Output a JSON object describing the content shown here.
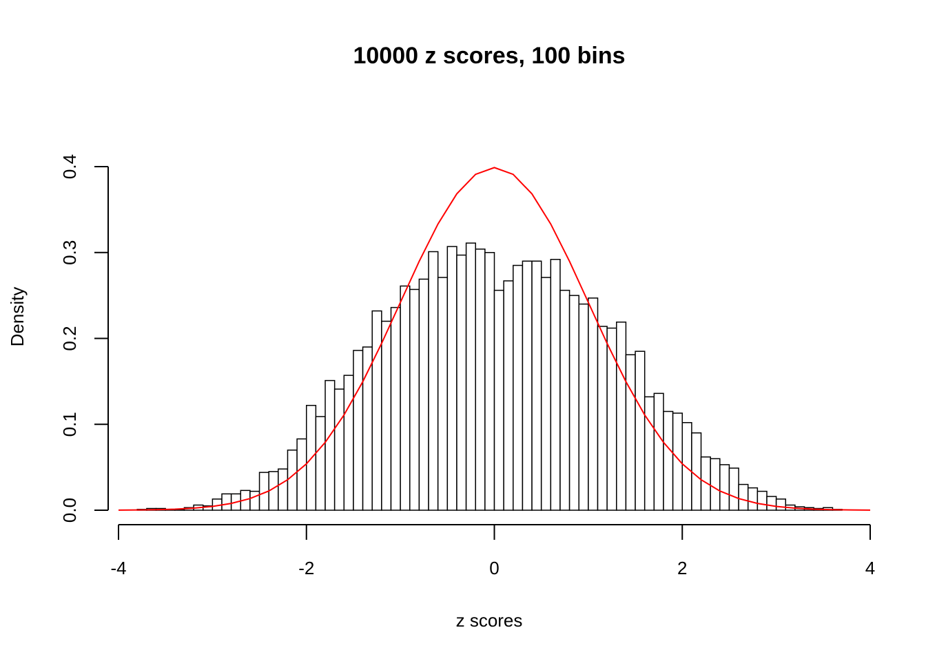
{
  "chart_data": {
    "type": "histogram",
    "title": "10000 z scores, 100 bins",
    "x_label": "z scores",
    "y_label": "Density",
    "bins": [
      -3.8,
      -3.7,
      -3.6,
      -3.5,
      -3.4,
      -3.3,
      -3.2,
      -3.1,
      -3.0,
      -2.9,
      -2.8,
      -2.7,
      -2.6,
      -2.5,
      -2.4,
      -2.3,
      -2.2,
      -2.1,
      -2.0,
      -1.9,
      -1.8,
      -1.7,
      -1.6,
      -1.5,
      -1.4,
      -1.3,
      -1.2,
      -1.1,
      -1.0,
      -0.9,
      -0.8,
      -0.7,
      -0.6,
      -0.5,
      -0.4,
      -0.3,
      -0.2,
      -0.1,
      0.0,
      0.1,
      0.2,
      0.3,
      0.4,
      0.5,
      0.6,
      0.7,
      0.8,
      0.9,
      1.0,
      1.1,
      1.2,
      1.3,
      1.4,
      1.5,
      1.6,
      1.7,
      1.8,
      1.9,
      2.0,
      2.1,
      2.2,
      2.3,
      2.4,
      2.5,
      2.6,
      2.7,
      2.8,
      2.9,
      3.0,
      3.1,
      3.2,
      3.3,
      3.4,
      3.5,
      3.6,
      3.7
    ],
    "values": [
      0.001,
      0.002,
      0.002,
      0.001,
      0.001,
      0.003,
      0.006,
      0.005,
      0.013,
      0.019,
      0.019,
      0.023,
      0.022,
      0.044,
      0.045,
      0.048,
      0.07,
      0.083,
      0.122,
      0.109,
      0.151,
      0.141,
      0.157,
      0.186,
      0.19,
      0.232,
      0.22,
      0.236,
      0.261,
      0.257,
      0.269,
      0.301,
      0.271,
      0.307,
      0.297,
      0.311,
      0.304,
      0.3,
      0.256,
      0.267,
      0.285,
      0.29,
      0.29,
      0.271,
      0.292,
      0.256,
      0.25,
      0.24,
      0.247,
      0.214,
      0.212,
      0.219,
      0.181,
      0.185,
      0.132,
      0.136,
      0.115,
      0.113,
      0.102,
      0.09,
      0.062,
      0.06,
      0.053,
      0.049,
      0.03,
      0.026,
      0.022,
      0.016,
      0.013,
      0.006,
      0.004,
      0.003,
      0.002,
      0.003,
      0.001
    ],
    "color": "#ffffff",
    "edge_color": "#000000",
    "overlay": {
      "type": "line",
      "color": "#ff0000",
      "x": [
        -4.0,
        -3.8,
        -3.6,
        -3.4,
        -3.2,
        -3.0,
        -2.8,
        -2.6,
        -2.4,
        -2.2,
        -2.0,
        -1.8,
        -1.6,
        -1.4,
        -1.2,
        -1.0,
        -0.8,
        -0.6,
        -0.4,
        -0.2,
        0.0,
        0.2,
        0.4,
        0.6,
        0.8,
        1.0,
        1.2,
        1.4,
        1.6,
        1.8,
        2.0,
        2.2,
        2.4,
        2.6,
        2.8,
        3.0,
        3.2,
        3.4,
        3.6,
        3.8,
        4.0
      ],
      "values": [
        0.0001,
        0.0003,
        0.0006,
        0.0012,
        0.0024,
        0.0044,
        0.0079,
        0.0136,
        0.0224,
        0.0355,
        0.054,
        0.079,
        0.1109,
        0.1497,
        0.1942,
        0.242,
        0.2897,
        0.3332,
        0.3683,
        0.391,
        0.3989,
        0.391,
        0.3683,
        0.3332,
        0.2897,
        0.242,
        0.1942,
        0.1497,
        0.1109,
        0.079,
        0.054,
        0.0355,
        0.0224,
        0.0136,
        0.0079,
        0.0044,
        0.0024,
        0.0012,
        0.0006,
        0.0003,
        0.0001
      ]
    },
    "xlim": [
      -4,
      4
    ],
    "xticks": [
      -4,
      -2,
      0,
      2,
      4
    ],
    "ylim": [
      0,
      0.4
    ],
    "yticks": [
      {
        "value": 0,
        "label": "0.0"
      },
      0.1,
      0.2,
      0.3,
      0.4
    ]
  }
}
